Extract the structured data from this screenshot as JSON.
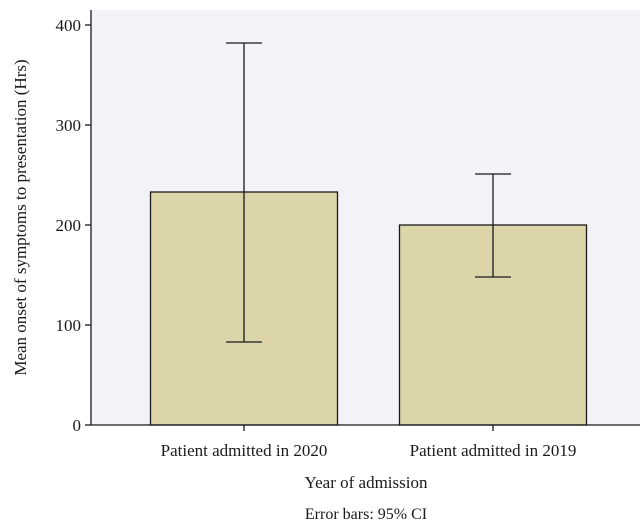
{
  "chart_data": {
    "type": "bar",
    "categories": [
      "Patient admitted in 2020",
      "Patient admitted in 2019"
    ],
    "values": [
      233,
      200
    ],
    "error_bars": [
      {
        "low": 83,
        "high": 382
      },
      {
        "low": 148,
        "high": 251
      }
    ],
    "xlabel": "Year of admission",
    "ylabel": "Mean onset of symptoms to presentation (Hrs)",
    "yticks": [
      0,
      100,
      200,
      300,
      400
    ],
    "ylim": [
      0,
      415
    ],
    "note": "Error bars: 95% CI",
    "grid": false,
    "colors": {
      "bar_fill": "#dcd5aa",
      "bar_stroke": "#1a1a1a",
      "plot_background": "#f2f2f7",
      "axis": "#1a1a1a"
    }
  }
}
